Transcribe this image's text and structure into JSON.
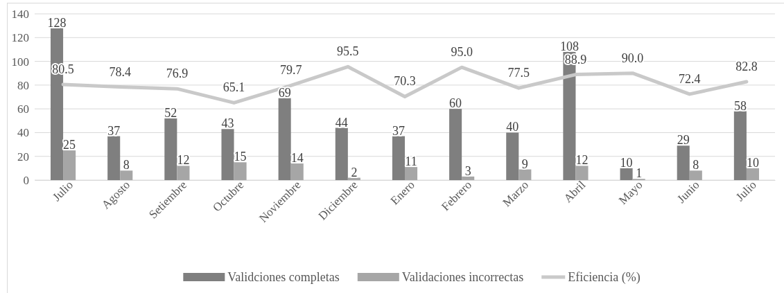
{
  "chart_data": {
    "type": "bar",
    "categories": [
      "Julio",
      "Agosto",
      "Setiembre",
      "Octubre",
      "Noviembre",
      "Diciembre",
      "Enero",
      "Febrero",
      "Marzo",
      "Abril",
      "Mayo",
      "Junio",
      "Julio"
    ],
    "series": [
      {
        "name": "Validciones completas",
        "color": "#7f7f7f",
        "values": [
          128,
          37,
          52,
          43,
          69,
          44,
          37,
          60,
          40,
          108,
          10,
          29,
          58
        ],
        "value_labels": [
          "128",
          "37",
          "52",
          "43",
          "69",
          "44",
          "37",
          "60",
          "40",
          "108",
          "10",
          "29",
          "58"
        ]
      },
      {
        "name": "Validaciones incorrectas",
        "color": "#a6a6a6",
        "values": [
          25,
          8,
          12,
          15,
          14,
          2,
          11,
          3,
          9,
          12,
          1,
          8,
          10
        ],
        "value_labels": [
          "25",
          "8",
          "12",
          "15",
          "14",
          "2",
          "11",
          "3",
          "9",
          "12",
          "1",
          "8",
          "10"
        ]
      },
      {
        "name": "Eficiencia (%)",
        "type": "line",
        "color": "#c9c9c9",
        "values": [
          80.5,
          78.4,
          76.9,
          65.1,
          79.7,
          95.5,
          70.3,
          95.0,
          77.5,
          88.9,
          90.0,
          72.4,
          82.8
        ],
        "value_labels": [
          "80.5",
          "78.4",
          "76.9",
          "65.1",
          "79.7",
          "95.5",
          "70.3",
          "95.0",
          "77.5",
          "88.9",
          "90.0",
          "72.4",
          "82.8"
        ]
      }
    ],
    "ylim": [
      0,
      140
    ],
    "yticks": [
      0,
      20,
      40,
      60,
      80,
      100,
      120,
      140
    ],
    "grid": "y",
    "legend": "bottom",
    "marker": "none",
    "line_style": "solid"
  }
}
